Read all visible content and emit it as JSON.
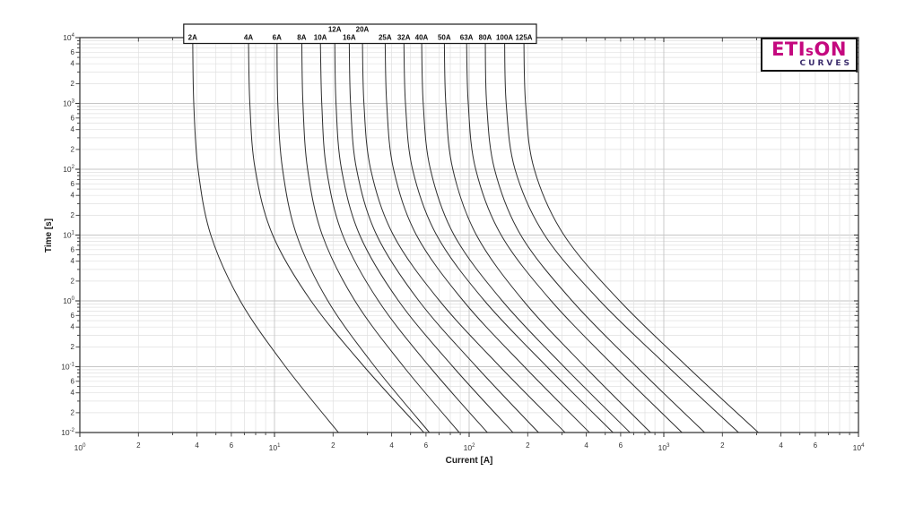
{
  "logo": {
    "brand_main": "ETI",
    "brand_small": "s",
    "brand_end": "ON",
    "subtitle": "CURVES",
    "brand_color": "#c4087f",
    "subtitle_color": "#3c2e6d"
  },
  "chart_data": {
    "type": "line",
    "title": "",
    "xlabel": "Current [A]",
    "ylabel": "Time [s]",
    "x_scale": "log",
    "y_scale": "log",
    "xlim": [
      1,
      10000
    ],
    "ylim": [
      0.01,
      10000
    ],
    "grid": true,
    "x_decade_exponents": [
      0,
      1,
      2,
      3,
      4
    ],
    "y_decade_exponents": [
      4,
      3,
      2,
      1,
      0,
      -1,
      -2
    ],
    "minor_tick_labels": [
      2,
      4,
      6
    ],
    "legend_position": "top",
    "colors": {
      "curve": "#2e2e2e",
      "frame": "#3a3a3a",
      "grid_major": "#c6c6c6",
      "grid_minor": "#e0e0e0",
      "tick_text": "#333333",
      "legend_border": "#1a1a1a"
    },
    "series": [
      {
        "label": "2A",
        "legend_row": 2,
        "points": [
          [
            10000,
            3.8
          ],
          [
            1000,
            3.85
          ],
          [
            100,
            4.05
          ],
          [
            10,
            4.71
          ],
          [
            1,
            6.67
          ],
          [
            0.1,
            11.4
          ],
          [
            0.01,
            21.3
          ]
        ]
      },
      {
        "label": "4A",
        "legend_row": 2,
        "points": [
          [
            10000,
            7.35
          ],
          [
            1000,
            7.47
          ],
          [
            100,
            7.96
          ],
          [
            10,
            9.79
          ],
          [
            1,
            15.4
          ],
          [
            0.1,
            28.9
          ],
          [
            0.01,
            58.5
          ]
        ]
      },
      {
        "label": "6A",
        "legend_row": 2,
        "points": [
          [
            10000,
            10.3
          ],
          [
            1000,
            10.4
          ],
          [
            100,
            11.0
          ],
          [
            10,
            13.0
          ],
          [
            1,
            18.8
          ],
          [
            0.1,
            32.8
          ],
          [
            0.01,
            62.5
          ]
        ]
      },
      {
        "label": "8A",
        "legend_row": 2,
        "points": [
          [
            10000,
            13.8
          ],
          [
            1000,
            14.0
          ],
          [
            100,
            14.8
          ],
          [
            10,
            17.6
          ],
          [
            1,
            25.9
          ],
          [
            0.1,
            46.1
          ],
          [
            0.01,
            89.0
          ]
        ]
      },
      {
        "label": "10A",
        "legend_row": 2,
        "points": [
          [
            10000,
            17.2
          ],
          [
            1000,
            17.5
          ],
          [
            100,
            18.5
          ],
          [
            10,
            22.4
          ],
          [
            1,
            34.2
          ],
          [
            0.1,
            62.6
          ],
          [
            0.01,
            124
          ]
        ]
      },
      {
        "label": "12A",
        "legend_row": 1,
        "points": [
          [
            10000,
            20.4
          ],
          [
            1000,
            20.7
          ],
          [
            100,
            22.1
          ],
          [
            10,
            27.4
          ],
          [
            1,
            43.4
          ],
          [
            0.1,
            82.5
          ],
          [
            0.01,
            168
          ]
        ]
      },
      {
        "label": "16A",
        "legend_row": 2,
        "points": [
          [
            10000,
            24.2
          ],
          [
            1000,
            24.6
          ],
          [
            100,
            26.4
          ],
          [
            10,
            33.5
          ],
          [
            1,
            55.2
          ],
          [
            0.1,
            109
          ],
          [
            0.01,
            227
          ]
        ]
      },
      {
        "label": "20A",
        "legend_row": 1,
        "points": [
          [
            10000,
            28.3
          ],
          [
            1000,
            28.8
          ],
          [
            100,
            31.2
          ],
          [
            10,
            40.8
          ],
          [
            1,
            70.5
          ],
          [
            0.1,
            144
          ],
          [
            0.01,
            311
          ]
        ]
      },
      {
        "label": "25A",
        "legend_row": 2,
        "points": [
          [
            10000,
            37.0
          ],
          [
            1000,
            37.7
          ],
          [
            100,
            40.9
          ],
          [
            10,
            53.6
          ],
          [
            1,
            93.3
          ],
          [
            0.1,
            192
          ],
          [
            0.01,
            415
          ]
        ]
      },
      {
        "label": "32A",
        "legend_row": 2,
        "points": [
          [
            10000,
            46.2
          ],
          [
            1000,
            47.1
          ],
          [
            100,
            51.2
          ],
          [
            10,
            68.0
          ],
          [
            1,
            120
          ],
          [
            0.1,
            251
          ],
          [
            0.01,
            548
          ]
        ]
      },
      {
        "label": "40A",
        "legend_row": 2,
        "points": [
          [
            10000,
            57.0
          ],
          [
            1000,
            58.1
          ],
          [
            100,
            63.2
          ],
          [
            10,
            83.7
          ],
          [
            1,
            148
          ],
          [
            0.1,
            307
          ],
          [
            0.01,
            670
          ]
        ]
      },
      {
        "label": "50A",
        "legend_row": 2,
        "points": [
          [
            10000,
            74.5
          ],
          [
            1000,
            75.9
          ],
          [
            100,
            82.4
          ],
          [
            10,
            109
          ],
          [
            1,
            190
          ],
          [
            0.1,
            393
          ],
          [
            0.01,
            855
          ]
        ]
      },
      {
        "label": "63A",
        "legend_row": 2,
        "points": [
          [
            10000,
            97.0
          ],
          [
            1000,
            98.9
          ],
          [
            100,
            108
          ],
          [
            10,
            146
          ],
          [
            1,
            264
          ],
          [
            0.1,
            559
          ],
          [
            0.01,
            1240
          ]
        ]
      },
      {
        "label": "80A",
        "legend_row": 2,
        "points": [
          [
            10000,
            121
          ],
          [
            1000,
            123
          ],
          [
            100,
            135
          ],
          [
            10,
            184
          ],
          [
            1,
            338
          ],
          [
            0.1,
            724
          ],
          [
            0.01,
            1620
          ]
        ]
      },
      {
        "label": "100A",
        "legend_row": 2,
        "points": [
          [
            10000,
            152
          ],
          [
            1000,
            155
          ],
          [
            100,
            172
          ],
          [
            10,
            244
          ],
          [
            1,
            470
          ],
          [
            0.1,
            1050
          ],
          [
            0.01,
            2420
          ]
        ]
      },
      {
        "label": "125A",
        "legend_row": 2,
        "points": [
          [
            10000,
            191
          ],
          [
            1000,
            195
          ],
          [
            100,
            216
          ],
          [
            10,
            307
          ],
          [
            1,
            593
          ],
          [
            0.1,
            1320
          ],
          [
            0.01,
            3060
          ]
        ]
      }
    ]
  }
}
